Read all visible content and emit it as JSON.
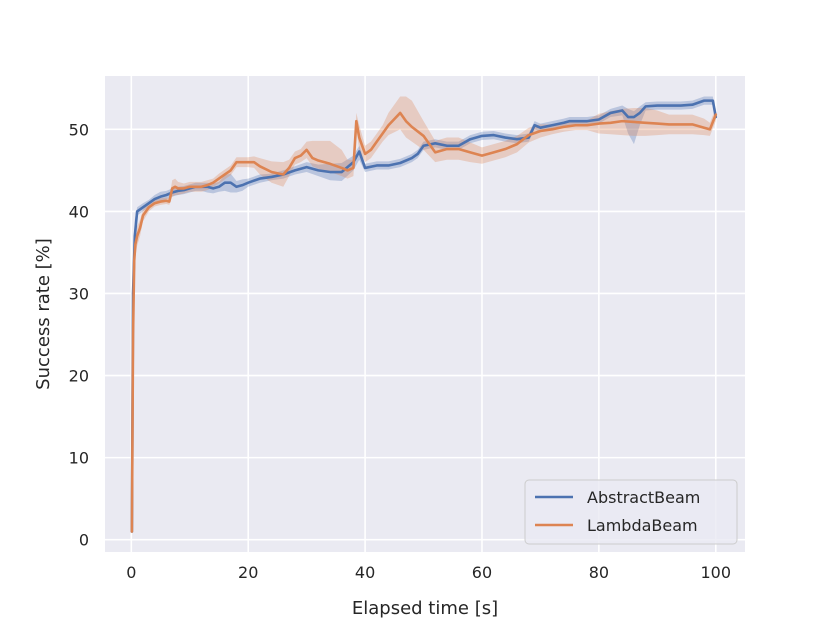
{
  "chart_data": {
    "type": "line",
    "title": "",
    "xlabel": "Elapsed time [s]",
    "ylabel": "Success rate [%]",
    "xlim": [
      -4.5,
      105
    ],
    "ylim": [
      -1.5,
      56.5
    ],
    "xticks": [
      0,
      20,
      40,
      60,
      80,
      100
    ],
    "yticks": [
      0,
      10,
      20,
      30,
      40,
      50
    ],
    "grid": true,
    "legend_position": "lower-right",
    "series": [
      {
        "name": "AbstractBeam",
        "color": "#4c72b0",
        "band_color": "#4c72b0",
        "x": [
          0.1,
          0.3,
          0.6,
          1,
          2,
          3,
          4,
          5,
          6,
          7,
          8,
          9,
          10,
          11,
          12,
          13,
          14,
          15,
          16,
          17,
          18,
          19,
          20,
          22,
          24,
          26,
          28,
          30,
          32,
          34,
          36,
          38,
          39,
          40,
          42,
          44,
          46,
          48,
          49,
          50,
          52,
          54,
          56,
          58,
          60,
          62,
          64,
          66,
          68,
          69,
          70,
          72,
          74,
          75,
          76,
          78,
          80,
          82,
          84,
          85,
          86,
          87,
          88,
          90,
          92,
          94,
          96,
          98,
          99.5,
          100
        ],
        "y": [
          1,
          30,
          37,
          40,
          40.5,
          41,
          41.5,
          41.8,
          42,
          42.3,
          42.5,
          42.6,
          42.8,
          43,
          43,
          43,
          42.8,
          43,
          43.5,
          43.5,
          43,
          43.2,
          43.5,
          44,
          44.2,
          44.5,
          45,
          45.4,
          45,
          44.8,
          44.8,
          46,
          47.3,
          45.3,
          45.6,
          45.6,
          45.9,
          46.5,
          47,
          48,
          48.3,
          48,
          48,
          48.8,
          49.2,
          49.3,
          49,
          48.8,
          49,
          50.5,
          50.2,
          50.5,
          50.8,
          51,
          51,
          51,
          51.2,
          52,
          52.3,
          51.5,
          51.5,
          52,
          52.8,
          52.9,
          52.9,
          52.9,
          53,
          53.5,
          53.5,
          51.5
        ],
        "lower": [
          1,
          28,
          35,
          39.5,
          40,
          40.6,
          41,
          41.2,
          41.5,
          41.8,
          42,
          42.1,
          42.3,
          42.5,
          42.5,
          42.3,
          42.2,
          42.4,
          42.5,
          42.3,
          42.3,
          42.5,
          43,
          43.5,
          43.8,
          44,
          44.5,
          44.8,
          44.3,
          43.8,
          43.7,
          45,
          46.3,
          44.8,
          45.1,
          45.1,
          45.4,
          46,
          46.5,
          47.5,
          47.8,
          47.5,
          47.5,
          48.3,
          48.7,
          48.8,
          48.5,
          48.3,
          48.5,
          50,
          49.7,
          50,
          50.3,
          50.5,
          50.5,
          50.5,
          50.7,
          51.5,
          51.7,
          49.5,
          48.2,
          50.5,
          52.3,
          52.4,
          52.4,
          52.4,
          52.5,
          53,
          53,
          51
        ],
        "upper": [
          1,
          32,
          39,
          40.5,
          41,
          41.4,
          42,
          42.4,
          42.5,
          42.8,
          43,
          43.1,
          43.3,
          43.5,
          43.5,
          43.5,
          43.4,
          43.6,
          44.4,
          44.6,
          43.7,
          43.9,
          44,
          44.5,
          44.6,
          45,
          45.5,
          46,
          45.7,
          45.8,
          45.9,
          46.8,
          48,
          45.8,
          46.1,
          46.1,
          46.4,
          47,
          47.5,
          48.5,
          48.8,
          48.5,
          48.5,
          49.3,
          49.7,
          49.8,
          49.5,
          49.3,
          49.5,
          51,
          50.7,
          51,
          51.3,
          51.5,
          51.5,
          51.5,
          51.7,
          52.5,
          52.9,
          52.5,
          52.2,
          52.8,
          53.3,
          53.4,
          53.4,
          53.4,
          53.5,
          54,
          54,
          52
        ]
      },
      {
        "name": "LambdaBeam",
        "color": "#dd8452",
        "band_color": "#dd8452",
        "x": [
          0.1,
          0.3,
          0.5,
          0.7,
          1,
          1.5,
          2,
          3,
          4,
          5,
          6,
          6.5,
          7,
          7.5,
          8,
          9,
          10,
          11,
          12,
          13,
          14,
          15,
          16,
          17,
          18,
          19,
          20,
          21,
          22,
          24,
          26,
          27,
          28,
          29,
          30,
          31,
          32,
          34,
          36,
          37,
          38,
          38.5,
          39,
          40,
          41,
          42,
          43,
          44,
          46,
          47,
          48,
          50,
          52,
          54,
          56,
          58,
          60,
          62,
          64,
          66,
          68,
          70,
          72,
          74,
          76,
          78,
          80,
          82,
          84,
          86,
          88,
          90,
          92,
          94,
          96,
          98,
          99,
          100
        ],
        "y": [
          1,
          25,
          34,
          36,
          37,
          38,
          39.5,
          40.5,
          41,
          41.2,
          41.3,
          41.2,
          42.8,
          43,
          42.8,
          42.8,
          43,
          43,
          43,
          43.2,
          43.5,
          44,
          44.5,
          45,
          46,
          46,
          46,
          46,
          45.5,
          44.8,
          44.5,
          45.3,
          46.5,
          46.8,
          47.5,
          46.5,
          46.2,
          45.8,
          45.3,
          45,
          45.3,
          51,
          49,
          47,
          47.5,
          48.5,
          49.5,
          50.5,
          52,
          51,
          50.3,
          49.2,
          47.2,
          47.6,
          47.6,
          47.2,
          46.8,
          47.2,
          47.6,
          48.2,
          49.3,
          49.8,
          50,
          50.3,
          50.5,
          50.5,
          50.7,
          50.8,
          51,
          50.9,
          50.8,
          50.7,
          50.6,
          50.6,
          50.6,
          50.2,
          50,
          51.8
        ],
        "lower": [
          1,
          23,
          32,
          34.5,
          35.8,
          37,
          38.8,
          40,
          40.6,
          40.8,
          40.9,
          40.8,
          41.8,
          42,
          42,
          42.2,
          42.4,
          42.4,
          42.4,
          42.6,
          43,
          43.4,
          43.9,
          44.4,
          45.4,
          45.4,
          45.4,
          45.3,
          44.5,
          43.5,
          43,
          44.3,
          45.7,
          46,
          46.5,
          45.5,
          45.2,
          44.8,
          44.3,
          44,
          44.3,
          50,
          47.5,
          46,
          46.5,
          47.5,
          48.5,
          49.3,
          50,
          49,
          48.5,
          47.5,
          46,
          46.3,
          46.3,
          46,
          45.8,
          46.2,
          46.6,
          47.2,
          48.4,
          49,
          49.4,
          49.7,
          49.9,
          49.9,
          49.5,
          49.4,
          49.3,
          49.2,
          49.2,
          49.3,
          49.4,
          49.4,
          49.4,
          49.3,
          49.2,
          51
        ],
        "upper": [
          1,
          27,
          36,
          37.5,
          38.2,
          39,
          40.2,
          41,
          41.4,
          41.6,
          41.7,
          41.6,
          43.8,
          44,
          43.6,
          43.4,
          43.6,
          43.6,
          43.6,
          43.8,
          44,
          44.6,
          45.1,
          45.6,
          46.6,
          46.6,
          46.6,
          46.7,
          46.5,
          46.1,
          46,
          46.3,
          47.3,
          47.6,
          48.5,
          48.6,
          48.6,
          48.6,
          47.5,
          46.3,
          46.3,
          52,
          50.5,
          48,
          48.5,
          49.5,
          50.5,
          52,
          54,
          54,
          53.5,
          51,
          48.6,
          49,
          49,
          48.4,
          47.8,
          48.2,
          48.6,
          49.2,
          50.2,
          50.6,
          50.6,
          50.9,
          51.1,
          51.1,
          51.9,
          52.2,
          52.5,
          52.6,
          52.6,
          52.3,
          51.8,
          51.8,
          51.8,
          51.3,
          50.8,
          52.6
        ]
      }
    ]
  }
}
